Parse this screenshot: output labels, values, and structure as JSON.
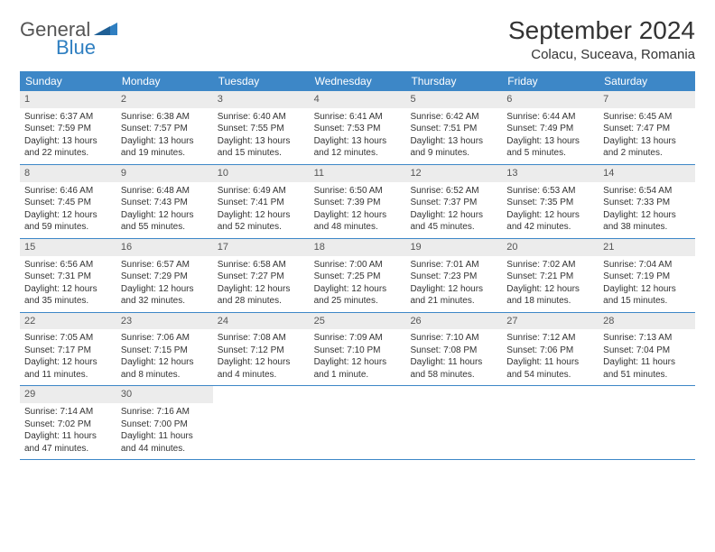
{
  "logo": {
    "part1": "General",
    "part2": "Blue"
  },
  "title": "September 2024",
  "location": "Colacu, Suceava, Romania",
  "colors": {
    "header_bg": "#3d87c7",
    "header_text": "#ffffff",
    "daynum_bg": "#ececec",
    "border": "#3d87c7",
    "logo_gray": "#555555",
    "logo_blue": "#2f7fc1",
    "text": "#333333",
    "background": "#ffffff"
  },
  "typography": {
    "title_fontsize": 28,
    "location_fontsize": 15,
    "dayhead_fontsize": 12,
    "daynum_fontsize": 11,
    "cell_fontsize": 10,
    "logo_fontsize": 22
  },
  "layout": {
    "columns": 7,
    "rows": 5,
    "cell_min_height": 78
  },
  "dayheads": [
    "Sunday",
    "Monday",
    "Tuesday",
    "Wednesday",
    "Thursday",
    "Friday",
    "Saturday"
  ],
  "weeks": [
    [
      {
        "n": "1",
        "sr": "Sunrise: 6:37 AM",
        "ss": "Sunset: 7:59 PM",
        "d1": "Daylight: 13 hours",
        "d2": "and 22 minutes."
      },
      {
        "n": "2",
        "sr": "Sunrise: 6:38 AM",
        "ss": "Sunset: 7:57 PM",
        "d1": "Daylight: 13 hours",
        "d2": "and 19 minutes."
      },
      {
        "n": "3",
        "sr": "Sunrise: 6:40 AM",
        "ss": "Sunset: 7:55 PM",
        "d1": "Daylight: 13 hours",
        "d2": "and 15 minutes."
      },
      {
        "n": "4",
        "sr": "Sunrise: 6:41 AM",
        "ss": "Sunset: 7:53 PM",
        "d1": "Daylight: 13 hours",
        "d2": "and 12 minutes."
      },
      {
        "n": "5",
        "sr": "Sunrise: 6:42 AM",
        "ss": "Sunset: 7:51 PM",
        "d1": "Daylight: 13 hours",
        "d2": "and 9 minutes."
      },
      {
        "n": "6",
        "sr": "Sunrise: 6:44 AM",
        "ss": "Sunset: 7:49 PM",
        "d1": "Daylight: 13 hours",
        "d2": "and 5 minutes."
      },
      {
        "n": "7",
        "sr": "Sunrise: 6:45 AM",
        "ss": "Sunset: 7:47 PM",
        "d1": "Daylight: 13 hours",
        "d2": "and 2 minutes."
      }
    ],
    [
      {
        "n": "8",
        "sr": "Sunrise: 6:46 AM",
        "ss": "Sunset: 7:45 PM",
        "d1": "Daylight: 12 hours",
        "d2": "and 59 minutes."
      },
      {
        "n": "9",
        "sr": "Sunrise: 6:48 AM",
        "ss": "Sunset: 7:43 PM",
        "d1": "Daylight: 12 hours",
        "d2": "and 55 minutes."
      },
      {
        "n": "10",
        "sr": "Sunrise: 6:49 AM",
        "ss": "Sunset: 7:41 PM",
        "d1": "Daylight: 12 hours",
        "d2": "and 52 minutes."
      },
      {
        "n": "11",
        "sr": "Sunrise: 6:50 AM",
        "ss": "Sunset: 7:39 PM",
        "d1": "Daylight: 12 hours",
        "d2": "and 48 minutes."
      },
      {
        "n": "12",
        "sr": "Sunrise: 6:52 AM",
        "ss": "Sunset: 7:37 PM",
        "d1": "Daylight: 12 hours",
        "d2": "and 45 minutes."
      },
      {
        "n": "13",
        "sr": "Sunrise: 6:53 AM",
        "ss": "Sunset: 7:35 PM",
        "d1": "Daylight: 12 hours",
        "d2": "and 42 minutes."
      },
      {
        "n": "14",
        "sr": "Sunrise: 6:54 AM",
        "ss": "Sunset: 7:33 PM",
        "d1": "Daylight: 12 hours",
        "d2": "and 38 minutes."
      }
    ],
    [
      {
        "n": "15",
        "sr": "Sunrise: 6:56 AM",
        "ss": "Sunset: 7:31 PM",
        "d1": "Daylight: 12 hours",
        "d2": "and 35 minutes."
      },
      {
        "n": "16",
        "sr": "Sunrise: 6:57 AM",
        "ss": "Sunset: 7:29 PM",
        "d1": "Daylight: 12 hours",
        "d2": "and 32 minutes."
      },
      {
        "n": "17",
        "sr": "Sunrise: 6:58 AM",
        "ss": "Sunset: 7:27 PM",
        "d1": "Daylight: 12 hours",
        "d2": "and 28 minutes."
      },
      {
        "n": "18",
        "sr": "Sunrise: 7:00 AM",
        "ss": "Sunset: 7:25 PM",
        "d1": "Daylight: 12 hours",
        "d2": "and 25 minutes."
      },
      {
        "n": "19",
        "sr": "Sunrise: 7:01 AM",
        "ss": "Sunset: 7:23 PM",
        "d1": "Daylight: 12 hours",
        "d2": "and 21 minutes."
      },
      {
        "n": "20",
        "sr": "Sunrise: 7:02 AM",
        "ss": "Sunset: 7:21 PM",
        "d1": "Daylight: 12 hours",
        "d2": "and 18 minutes."
      },
      {
        "n": "21",
        "sr": "Sunrise: 7:04 AM",
        "ss": "Sunset: 7:19 PM",
        "d1": "Daylight: 12 hours",
        "d2": "and 15 minutes."
      }
    ],
    [
      {
        "n": "22",
        "sr": "Sunrise: 7:05 AM",
        "ss": "Sunset: 7:17 PM",
        "d1": "Daylight: 12 hours",
        "d2": "and 11 minutes."
      },
      {
        "n": "23",
        "sr": "Sunrise: 7:06 AM",
        "ss": "Sunset: 7:15 PM",
        "d1": "Daylight: 12 hours",
        "d2": "and 8 minutes."
      },
      {
        "n": "24",
        "sr": "Sunrise: 7:08 AM",
        "ss": "Sunset: 7:12 PM",
        "d1": "Daylight: 12 hours",
        "d2": "and 4 minutes."
      },
      {
        "n": "25",
        "sr": "Sunrise: 7:09 AM",
        "ss": "Sunset: 7:10 PM",
        "d1": "Daylight: 12 hours",
        "d2": "and 1 minute."
      },
      {
        "n": "26",
        "sr": "Sunrise: 7:10 AM",
        "ss": "Sunset: 7:08 PM",
        "d1": "Daylight: 11 hours",
        "d2": "and 58 minutes."
      },
      {
        "n": "27",
        "sr": "Sunrise: 7:12 AM",
        "ss": "Sunset: 7:06 PM",
        "d1": "Daylight: 11 hours",
        "d2": "and 54 minutes."
      },
      {
        "n": "28",
        "sr": "Sunrise: 7:13 AM",
        "ss": "Sunset: 7:04 PM",
        "d1": "Daylight: 11 hours",
        "d2": "and 51 minutes."
      }
    ],
    [
      {
        "n": "29",
        "sr": "Sunrise: 7:14 AM",
        "ss": "Sunset: 7:02 PM",
        "d1": "Daylight: 11 hours",
        "d2": "and 47 minutes."
      },
      {
        "n": "30",
        "sr": "Sunrise: 7:16 AM",
        "ss": "Sunset: 7:00 PM",
        "d1": "Daylight: 11 hours",
        "d2": "and 44 minutes."
      },
      null,
      null,
      null,
      null,
      null
    ]
  ]
}
